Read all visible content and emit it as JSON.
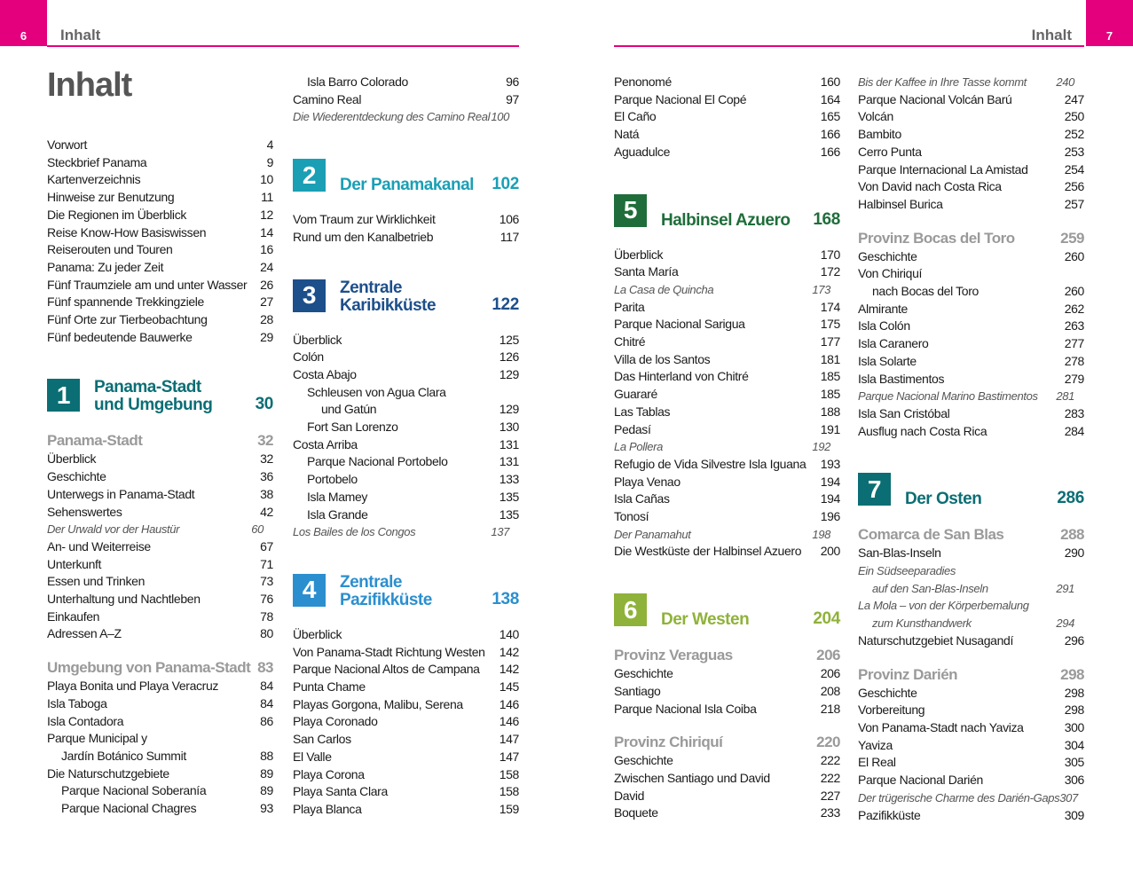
{
  "header": {
    "left": {
      "page": 6,
      "title": "Inhalt"
    },
    "right": {
      "title": "Inhalt",
      "page": 7
    }
  },
  "title": "Inhalt",
  "columns": [
    [
      {
        "item": "Vorwort",
        "page": 4
      },
      {
        "item": "Steckbrief Panama",
        "page": 9
      },
      {
        "item": "Kartenverzeichnis",
        "page": 10
      },
      {
        "item": "Hinweise zur Benutzung",
        "page": 11
      },
      {
        "item": "Die Regionen im Überblick",
        "page": 12
      },
      {
        "item": "Reise Know-How Basiswissen",
        "page": 14
      },
      {
        "item": "Reiserouten und Touren",
        "page": 16
      },
      {
        "item": "Panama: Zu jeder Zeit",
        "page": 24
      },
      {
        "item": "Fünf Traumziele am und unter Wasser",
        "page": 26
      },
      {
        "item": "Fünf spannende Trekkingziele",
        "page": 27
      },
      {
        "item": "Fünf Orte zur Tierbeobachtung",
        "page": 28
      },
      {
        "item": "Fünf bedeutende Bauwerke",
        "page": 29
      },
      {
        "number": "1",
        "title": [
          "Panama-Stadt",
          "und Umgebung"
        ],
        "page": 30,
        "color": "#0b6e74"
      },
      {
        "heading": "Panama-Stadt",
        "page": 32
      },
      {
        "item": "Überblick",
        "page": 32
      },
      {
        "item": "Geschichte",
        "page": 36
      },
      {
        "item": "Unterwegs in Panama-Stadt",
        "page": 38
      },
      {
        "item": "Sehenswertes",
        "page": 42
      },
      {
        "feature": "Der Urwald vor der Haustür",
        "page": 60
      },
      {
        "item": "An- und Weiterreise",
        "page": 67
      },
      {
        "item": "Unterkunft",
        "page": 71
      },
      {
        "item": "Essen und Trinken",
        "page": 73
      },
      {
        "item": "Unterhaltung und Nachtleben",
        "page": 76
      },
      {
        "item": "Einkaufen",
        "page": 78
      },
      {
        "item": "Adressen A–Z",
        "page": 80
      },
      {
        "heading": "Umgebung von Panama-Stadt",
        "page": 83
      },
      {
        "item": "Playa Bonita und Playa Veracruz",
        "page": 84
      },
      {
        "item": "Isla Taboga",
        "page": 84
      },
      {
        "item": "Isla Contadora",
        "page": 86
      },
      {
        "item": [
          "Parque Municipal y",
          "Jardín Botánico Summit"
        ],
        "page": 88
      },
      {
        "item": "Die Naturschutzgebiete",
        "page": 89
      },
      {
        "subitem": "Parque Nacional Soberanía",
        "page": 89
      },
      {
        "subitem": "Parque Nacional Chagres",
        "page": 93
      }
    ],
    [
      {
        "subitem": "Isla Barro Colorado",
        "page": 96
      },
      {
        "item": "Camino Real",
        "page": 97
      },
      {
        "feature": "Die Wiederentdeckung des Camino Real",
        "page": 100
      },
      {
        "number": "2",
        "title": [
          "Der Panamakanal"
        ],
        "page": 102,
        "color": "#1a9fb5"
      },
      {
        "item": "Vom Traum zur Wirklichkeit",
        "page": 106
      },
      {
        "item": "Rund um den Kanalbetrieb",
        "page": 117
      },
      {
        "number": "3",
        "title": [
          "Zentrale",
          "Karibikküste"
        ],
        "page": 122,
        "color": "#1d4f8b"
      },
      {
        "item": "Überblick",
        "page": 125
      },
      {
        "item": "Colón",
        "page": 126
      },
      {
        "item": "Costa Abajo",
        "page": 129
      },
      {
        "subitem": [
          "Schleusen von Agua Clara",
          "und Gatún"
        ],
        "page": 129
      },
      {
        "subitem": "Fort San Lorenzo",
        "page": 130
      },
      {
        "item": "Costa Arriba",
        "page": 131
      },
      {
        "subitem": "Parque Nacional Portobelo",
        "page": 131
      },
      {
        "subitem": "Portobelo",
        "page": 133
      },
      {
        "subitem": "Isla Mamey",
        "page": 135
      },
      {
        "subitem": "Isla Grande",
        "page": 135
      },
      {
        "feature": "Los Bailes de los Congos",
        "page": 137
      },
      {
        "number": "4",
        "title": [
          "Zentrale",
          "Pazifikküste"
        ],
        "page": 138,
        "color": "#2b8fcf"
      },
      {
        "item": "Überblick",
        "page": 140
      },
      {
        "item": "Von Panama-Stadt Richtung Westen",
        "page": 142
      },
      {
        "item": "Parque Nacional Altos de Campana",
        "page": 142
      },
      {
        "item": "Punta Chame",
        "page": 145
      },
      {
        "item": "Playas Gorgona, Malibu, Serena",
        "page": 146
      },
      {
        "item": "Playa Coronado",
        "page": 146
      },
      {
        "item": "San Carlos",
        "page": 147
      },
      {
        "item": "El Valle",
        "page": 147
      },
      {
        "item": "Playa Corona",
        "page": 158
      },
      {
        "item": "Playa Santa Clara",
        "page": 158
      },
      {
        "item": "Playa Blanca",
        "page": 159
      }
    ],
    [
      {
        "item": "Penonomé",
        "page": 160
      },
      {
        "item": "Parque Nacional El Copé",
        "page": 164
      },
      {
        "item": "El Caño",
        "page": 165
      },
      {
        "item": "Natá",
        "page": 166
      },
      {
        "item": "Aguadulce",
        "page": 166
      },
      {
        "number": "5",
        "title": [
          "Halbinsel Azuero"
        ],
        "page": 168,
        "color": "#1f6d3a"
      },
      {
        "item": "Überblick",
        "page": 170
      },
      {
        "item": "Santa María",
        "page": 172
      },
      {
        "feature": "La Casa de Quincha",
        "page": 173
      },
      {
        "item": "Parita",
        "page": 174
      },
      {
        "item": "Parque Nacional Sarigua",
        "page": 175
      },
      {
        "item": "Chitré",
        "page": 177
      },
      {
        "item": "Villa de los Santos",
        "page": 181
      },
      {
        "item": "Das Hinterland von Chitré",
        "page": 185
      },
      {
        "item": "Guararé",
        "page": 185
      },
      {
        "item": "Las Tablas",
        "page": 188
      },
      {
        "item": "Pedasí",
        "page": 191
      },
      {
        "feature": "La Pollera",
        "page": 192
      },
      {
        "item": "Refugio de Vida Silvestre Isla Iguana",
        "page": 193
      },
      {
        "item": "Playa Venao",
        "page": 194
      },
      {
        "item": "Isla Cañas",
        "page": 194
      },
      {
        "item": "Tonosí",
        "page": 196
      },
      {
        "feature": "Der Panamahut",
        "page": 198
      },
      {
        "item": "Die Westküste der Halbinsel Azuero",
        "page": 200
      },
      {
        "number": "6",
        "title": [
          "Der Westen"
        ],
        "page": 204,
        "color": "#8fb23a"
      },
      {
        "heading": "Provinz Veraguas",
        "page": 206
      },
      {
        "item": "Geschichte",
        "page": 206
      },
      {
        "item": "Santiago",
        "page": 208
      },
      {
        "item": "Parque Nacional Isla Coiba",
        "page": 218
      },
      {
        "heading": "Provinz Chiriquí",
        "page": 220
      },
      {
        "item": "Geschichte",
        "page": 222
      },
      {
        "item": "Zwischen Santiago und David",
        "page": 222
      },
      {
        "item": "David",
        "page": 227
      },
      {
        "item": "Boquete",
        "page": 233
      }
    ],
    [
      {
        "feature": "Bis der Kaffee in Ihre Tasse kommt",
        "page": 240
      },
      {
        "item": "Parque Nacional Volcán Barú",
        "page": 247
      },
      {
        "item": "Volcán",
        "page": 250
      },
      {
        "item": "Bambito",
        "page": 252
      },
      {
        "item": "Cerro Punta",
        "page": 253
      },
      {
        "item": "Parque Internacional La Amistad",
        "page": 254
      },
      {
        "item": "Von David nach Costa Rica",
        "page": 256
      },
      {
        "item": "Halbinsel Burica",
        "page": 257
      },
      {
        "heading": "Provinz Bocas del Toro",
        "page": 259
      },
      {
        "item": "Geschichte",
        "page": 260
      },
      {
        "item": [
          "Von Chiriquí",
          "nach Bocas del Toro"
        ],
        "page": 260
      },
      {
        "item": "Almirante",
        "page": 262
      },
      {
        "item": "Isla Colón",
        "page": 263
      },
      {
        "item": "Isla Caranero",
        "page": 277
      },
      {
        "item": "Isla Solarte",
        "page": 278
      },
      {
        "item": "Isla Bastimentos",
        "page": 279
      },
      {
        "feature": "Parque Nacional Marino Bastimentos",
        "page": 281
      },
      {
        "item": "Isla San Cristóbal",
        "page": 283
      },
      {
        "item": "Ausflug nach Costa Rica",
        "page": 284
      },
      {
        "number": "7",
        "title": [
          "Der Osten"
        ],
        "page": 286,
        "color": "#0b6e74"
      },
      {
        "heading": "Comarca de San Blas",
        "page": 288
      },
      {
        "item": "San-Blas-Inseln",
        "page": 290
      },
      {
        "feature": [
          "Ein Südseeparadies",
          "auf den San-Blas-Inseln"
        ],
        "page": 291
      },
      {
        "feature": [
          "La Mola – von der Körperbemalung",
          "zum Kunsthandwerk"
        ],
        "page": 294
      },
      {
        "item": "Naturschutzgebiet Nusagandí",
        "page": 296
      },
      {
        "heading": "Provinz Darién",
        "page": 298
      },
      {
        "item": "Geschichte",
        "page": 298
      },
      {
        "item": "Vorbereitung",
        "page": 298
      },
      {
        "item": "Von Panama-Stadt nach Yaviza",
        "page": 300
      },
      {
        "item": "Yaviza",
        "page": 304
      },
      {
        "item": "El Real",
        "page": 305
      },
      {
        "item": "Parque Nacional Darién",
        "page": 306
      },
      {
        "feature": "Der trügerische Charme des Darién-Gaps",
        "page": 307
      },
      {
        "item": "Pazifikküste",
        "page": 309
      }
    ]
  ]
}
